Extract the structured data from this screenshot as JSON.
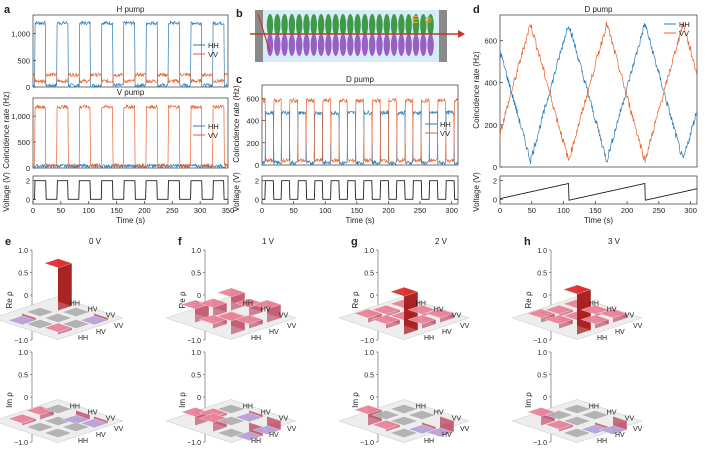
{
  "colors": {
    "hh": "#2b7bba",
    "vv": "#e8622c",
    "bar_red": "#e03030",
    "bar_pink": "#e9849a",
    "bar_lav": "#b9a3d6",
    "grid_gray": "#d9d9d9",
    "cell_gray": "#b0b0b0"
  },
  "chart_data": [
    {
      "id": "a_top",
      "type": "line",
      "panel_label": "a",
      "title": "H pump",
      "ylabel": "",
      "xlim": [
        0,
        350
      ],
      "ylim": [
        0,
        1350
      ],
      "yticks": [
        0,
        500,
        1000
      ],
      "yticklabels": [
        "0",
        "500",
        "1,000"
      ],
      "legend": [
        "HH",
        "VV"
      ],
      "legend_placement": "center-right",
      "series": [
        {
          "name": "HH",
          "pattern": "square",
          "period": 40,
          "phase": 3,
          "high": 1200,
          "low": 30
        },
        {
          "name": "VV",
          "pattern": "square-inverse",
          "period": 40,
          "phase": 3,
          "high": 230,
          "low": 110
        }
      ]
    },
    {
      "id": "a_mid",
      "type": "line",
      "title": "V pump",
      "ylabel": "Coincidence rate (Hz)",
      "xlim": [
        0,
        350
      ],
      "ylim": [
        0,
        1350
      ],
      "yticks": [
        0,
        500,
        1000
      ],
      "yticklabels": [
        "0",
        "500",
        "1,000"
      ],
      "legend": [
        "HH",
        "VV"
      ],
      "legend_placement": "center-right",
      "series": [
        {
          "name": "HH",
          "pattern": "flat",
          "period": 40,
          "phase": 3,
          "high": 60,
          "low": 30
        },
        {
          "name": "VV",
          "pattern": "square",
          "period": 40,
          "phase": 3,
          "high": 1180,
          "low": 50
        }
      ]
    },
    {
      "id": "a_bot",
      "type": "line",
      "ylabel": "Voltage (V)",
      "xlabel": "Time (s)",
      "xlim": [
        0,
        350
      ],
      "ylim": [
        -0.5,
        2.5
      ],
      "yticks": [
        0,
        2
      ],
      "xticks": [
        0,
        50,
        100,
        150,
        200,
        250,
        300,
        350
      ],
      "series": [
        {
          "name": "Voltage",
          "pattern": "square",
          "period": 40,
          "phase": 3,
          "high": 2,
          "low": 0
        }
      ]
    },
    {
      "id": "c_top",
      "type": "line",
      "panel_label": "c",
      "title": "D pump",
      "ylabel": "Coincidence rate (Hz)",
      "xlim": [
        0,
        310
      ],
      "ylim": [
        0,
        720
      ],
      "yticks": [
        0,
        200,
        400,
        600
      ],
      "legend": [
        "HH",
        "VV"
      ],
      "legend_placement": "center-right",
      "series": [
        {
          "name": "HH",
          "pattern": "square",
          "period": 26,
          "phase": 5,
          "high": 470,
          "low": 20
        },
        {
          "name": "VV",
          "pattern": "square-inverse",
          "period": 26,
          "phase": 5,
          "high": 580,
          "low": 40
        }
      ]
    },
    {
      "id": "c_bot",
      "type": "line",
      "ylabel": "Voltage (V)",
      "xlabel": "Time (s)",
      "xlim": [
        0,
        310
      ],
      "ylim": [
        -0.5,
        2.5
      ],
      "yticks": [
        0,
        2
      ],
      "xticks": [
        0,
        50,
        100,
        150,
        200,
        250,
        300
      ],
      "series": [
        {
          "name": "Voltage",
          "pattern": "square",
          "period": 26,
          "phase": 5,
          "high": 2,
          "low": 0
        }
      ]
    },
    {
      "id": "d_top",
      "type": "line",
      "panel_label": "d",
      "title": "D pump",
      "ylabel": "Coincidence rate (Hz)",
      "xlim": [
        0,
        310
      ],
      "ylim": [
        0,
        720
      ],
      "yticks": [
        0,
        200,
        400,
        600
      ],
      "legend": [
        "HH",
        "VV"
      ],
      "legend_placement": "top-right",
      "series": [
        {
          "name": "HH",
          "pattern": "ramp",
          "period": 120,
          "phase": 108,
          "high": 680,
          "low": 30
        },
        {
          "name": "VV",
          "pattern": "ramp-inverse",
          "period": 120,
          "phase": 108,
          "high": 680,
          "low": 30
        }
      ]
    },
    {
      "id": "d_bot",
      "type": "line",
      "ylabel": "Voltage (V)",
      "xlabel": "Time (s)",
      "xlim": [
        0,
        310
      ],
      "ylim": [
        -0.5,
        2.5
      ],
      "yticks": [
        0,
        2
      ],
      "xticks": [
        0,
        50,
        100,
        150,
        200,
        250,
        300
      ],
      "series": [
        {
          "name": "Voltage",
          "pattern": "sawtooth",
          "period": 120,
          "phase": 108,
          "high": 2,
          "low": 0
        }
      ]
    },
    {
      "id": "density_matrices",
      "type": "bar3d",
      "basis": [
        "HH",
        "HV",
        "VV"
      ],
      "zticks": [
        "1.0",
        "0.5",
        "0",
        "−0.5",
        "−1.0"
      ],
      "re_label": "Re ρ",
      "im_label": "Im ρ",
      "panels": [
        {
          "label": "e",
          "title": "0 V",
          "re": [
            [
              0.95,
              0,
              -0.05
            ],
            [
              0,
              0,
              0
            ],
            [
              -0.05,
              0,
              0.05
            ]
          ],
          "im": [
            [
              0,
              0.1,
              0.05
            ],
            [
              -0.1,
              0,
              0
            ],
            [
              -0.05,
              0,
              0
            ]
          ]
        },
        {
          "label": "f",
          "title": "1 V",
          "re": [
            [
              0.3,
              0.2,
              0.3
            ],
            [
              0.2,
              0.05,
              0.1
            ],
            [
              0.3,
              0.1,
              0.3
            ]
          ],
          "im": [
            [
              0,
              0.05,
              0.2
            ],
            [
              -0.05,
              0,
              0.2
            ],
            [
              -0.2,
              -0.2,
              0
            ]
          ]
        },
        {
          "label": "g",
          "title": "2 V",
          "re": [
            [
              0.05,
              0.05,
              0.1
            ],
            [
              0.05,
              0.05,
              0.1
            ],
            [
              0.1,
              0.1,
              0.85
            ]
          ],
          "im": [
            [
              0,
              0,
              0.25
            ],
            [
              0,
              0,
              0.05
            ],
            [
              -0.25,
              -0.05,
              0
            ]
          ]
        },
        {
          "label": "h",
          "title": "3 V",
          "re": [
            [
              0.05,
              0.05,
              0.1
            ],
            [
              0.05,
              0.05,
              0.1
            ],
            [
              0.1,
              0.1,
              0.9
            ]
          ],
          "im": [
            [
              0,
              0,
              0.2
            ],
            [
              0,
              0,
              0.05
            ],
            [
              -0.2,
              -0.05,
              0
            ]
          ]
        }
      ]
    }
  ],
  "schematic": {
    "panel_label": "b",
    "field_label": "E",
    "field_symbol": "⊗"
  }
}
